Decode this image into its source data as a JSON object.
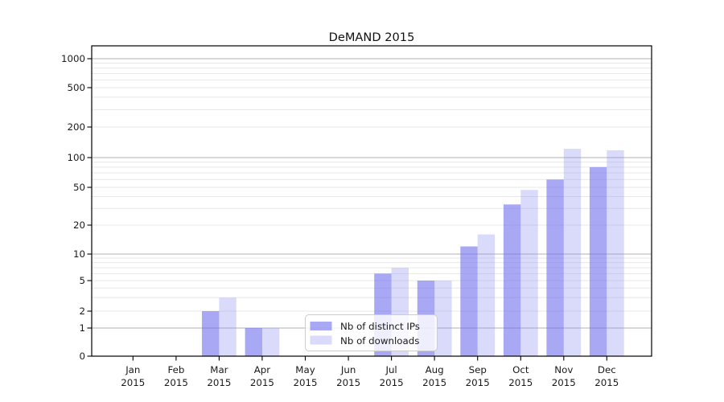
{
  "chart_data": {
    "type": "bar",
    "title": "DeMAND 2015",
    "year": "2015",
    "months": [
      "Jan",
      "Feb",
      "Mar",
      "Apr",
      "May",
      "Jun",
      "Jul",
      "Aug",
      "Sep",
      "Oct",
      "Nov",
      "Dec"
    ],
    "categories": [
      "Jan 2015",
      "Feb 2015",
      "Mar 2015",
      "Apr 2015",
      "May 2015",
      "Jun 2015",
      "Jul 2015",
      "Aug 2015",
      "Sep 2015",
      "Oct 2015",
      "Nov 2015",
      "Dec 2015"
    ],
    "series": [
      {
        "name": "Nb of distinct IPs",
        "color": "rgba(110,110,238,0.60)",
        "values": [
          0,
          0,
          2,
          1,
          0,
          0,
          6,
          5,
          12,
          33,
          60,
          80
        ]
      },
      {
        "name": "Nb of downloads",
        "color": "rgba(149,149,241,0.35)",
        "values": [
          0,
          0,
          3,
          1,
          0,
          0,
          7,
          5,
          16,
          47,
          122,
          118
        ]
      }
    ],
    "yticks": [
      0,
      1,
      2,
      5,
      10,
      20,
      50,
      100,
      200,
      500,
      1000
    ],
    "yscale": "symlog",
    "ylim": [
      0,
      1000
    ],
    "grid": true,
    "legend_position": "lower-center",
    "colors": {
      "major_grid": "#b0b0b0",
      "minor_grid": "#e7e7e7",
      "spine": "#000000",
      "legend_border": "#cccccc",
      "legend_bg": "rgba(255,255,255,0.8)"
    }
  }
}
